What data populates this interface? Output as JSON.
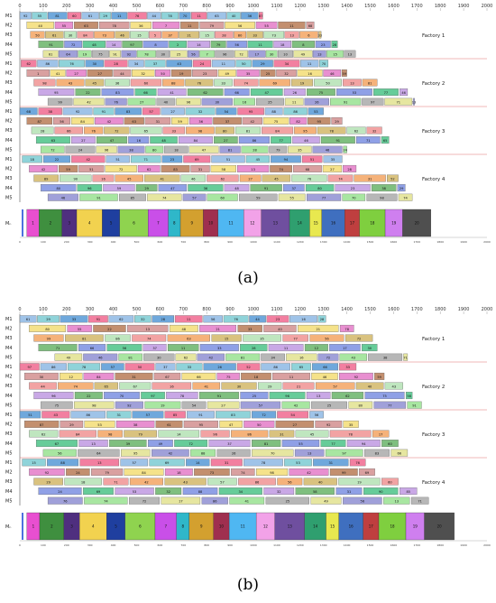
{
  "colors": {
    "palette": [
      "#9fc3e8",
      "#f2a3a3",
      "#a8e6a1",
      "#f5e28a",
      "#c9a8e6",
      "#8fd3d9",
      "#f5b27a",
      "#b7b7b7",
      "#e88fd0",
      "#7fbf7f",
      "#6fa8dc",
      "#d9c27f",
      "#e6e6a0",
      "#c38f6f",
      "#8fa0e6",
      "#f27fa0",
      "#bfe6bf",
      "#a0a0d9",
      "#d9a0a0",
      "#66cc99"
    ],
    "bottom_palette": [
      "#e84fd0",
      "#3f8f3f",
      "#4f2f7f",
      "#f2d24f",
      "#1f3f9f",
      "#8fd34f",
      "#c94fe8",
      "#2fb7c9",
      "#d3a02f",
      "#9f2f4f",
      "#4fb7f2",
      "#f2a2e8",
      "#6f4f9f",
      "#2f9f6f",
      "#e8e84f",
      "#3f6fbf",
      "#bf3f3f",
      "#7fcf3f",
      "#cf7fef",
      "#4f4f4f"
    ],
    "factory_separator": "#e07070",
    "axis": "#555555",
    "last_machine_line": "#1f4fd6"
  },
  "charts": [
    {
      "panel": "a",
      "caption": "(a)",
      "type": "gantt",
      "x_ticks": [
        0,
        100,
        200,
        300,
        400,
        500,
        600,
        700,
        800,
        900,
        1000,
        1100,
        1200,
        1300,
        1400,
        1500,
        1600,
        1700,
        1800,
        1900,
        2000
      ],
      "machines": [
        "M1",
        "M2",
        "M3",
        "M4",
        "M5",
        "M1",
        "M2",
        "M3",
        "M4",
        "M5",
        "M1",
        "M2",
        "M3",
        "M4",
        "M5",
        "M1",
        "M2",
        "M3",
        "M4",
        "M5"
      ],
      "factories": [
        "Factory 1",
        "Factory 2",
        "Factory 3",
        "Factory 4"
      ],
      "bottom_machine": "Mₙ",
      "rows": [
        {
          "start": 0,
          "end": 1040,
          "labels": [
            "92",
            "55",
            "81",
            "60",
            "61",
            "29",
            "11",
            "76",
            "44",
            "78",
            "70",
            "11",
            "63",
            "40",
            "36",
            "87"
          ]
        },
        {
          "start": 30,
          "end": 1260,
          "labels": [
            "40",
            "55",
            "63",
            "78",
            "36",
            "7",
            "11",
            "79",
            "56",
            "55",
            "11",
            "68"
          ]
        },
        {
          "start": 45,
          "end": 1290,
          "labels": [
            "50",
            "61",
            "30",
            "84",
            "73",
            "46",
            "15",
            "5",
            "37",
            "21",
            "15",
            "28",
            "80",
            "33",
            "73",
            "13",
            "6",
            "33"
          ]
        },
        {
          "start": 80,
          "end": 1360,
          "labels": [
            "91",
            "72",
            "48",
            "14",
            "97",
            "8",
            "2",
            "14",
            "79",
            "56",
            "11",
            "18",
            "8",
            "23",
            "28"
          ]
        },
        {
          "start": 100,
          "end": 1440,
          "labels": [
            "61",
            "64",
            "19",
            "75",
            "91",
            "92",
            "78",
            "30",
            "25",
            "56",
            "7",
            "96",
            "72",
            "17",
            "30",
            "10",
            "49",
            "13",
            "15",
            "13",
            "71"
          ]
        },
        {
          "start": 5,
          "end": 1320,
          "labels": [
            "62",
            "86",
            "76",
            "30",
            "28",
            "34",
            "37",
            "43",
            "24",
            "11",
            "50",
            "29",
            "34",
            "11",
            "70"
          ]
        },
        {
          "start": 30,
          "end": 1400,
          "labels": [
            "1",
            "41",
            "27",
            "27",
            "44",
            "32",
            "50",
            "19",
            "23",
            "49",
            "35",
            "25",
            "32",
            "16",
            "46",
            "59"
          ]
        },
        {
          "start": 60,
          "end": 1530,
          "labels": [
            "98",
            "43",
            "45",
            "36",
            "60",
            "88",
            "76",
            "33",
            "74",
            "69",
            "19",
            "50",
            "13",
            "81"
          ]
        },
        {
          "start": 80,
          "end": 1660,
          "labels": [
            "95",
            "22",
            "83",
            "66",
            "41",
            "62",
            "66",
            "47",
            "26",
            "75",
            "53",
            "77",
            "46"
          ]
        },
        {
          "start": 120,
          "end": 1690,
          "labels": [
            "99",
            "42",
            "76",
            "27",
            "40",
            "96",
            "30",
            "16",
            "25",
            "11",
            "26",
            "91",
            "97",
            "71",
            "13"
          ]
        },
        {
          "start": 0,
          "end": 1300,
          "labels": [
            "68",
            "38",
            "92",
            "91",
            "83",
            "57",
            "27",
            "32",
            "54",
            "95",
            "88",
            "86",
            "53"
          ]
        },
        {
          "start": 30,
          "end": 1380,
          "labels": [
            "87",
            "56",
            "84",
            "42",
            "63",
            "31",
            "59",
            "36",
            "37",
            "42",
            "75",
            "82",
            "95",
            "29"
          ]
        },
        {
          "start": 50,
          "end": 1550,
          "labels": [
            "28",
            "66",
            "76",
            "72",
            "65",
            "33",
            "98",
            "80",
            "81",
            "84",
            "95",
            "78",
            "62",
            "32"
          ]
        },
        {
          "start": 70,
          "end": 1580,
          "labels": [
            "63",
            "27",
            "47",
            "16",
            "48",
            "84",
            "27",
            "86",
            "77",
            "46",
            "91",
            "71",
            "65"
          ]
        },
        {
          "start": 90,
          "end": 1400,
          "labels": [
            "72",
            "24",
            "96",
            "38",
            "80",
            "18",
            "47",
            "81",
            "28",
            "79",
            "35",
            "46",
            "24"
          ]
        },
        {
          "start": 10,
          "end": 1380,
          "labels": [
            "18",
            "22",
            "42",
            "51",
            "71",
            "23",
            "69",
            "51",
            "45",
            "94",
            "51",
            "35"
          ]
        },
        {
          "start": 40,
          "end": 1440,
          "labels": [
            "42",
            "59",
            "51",
            "72",
            "62",
            "83",
            "31",
            "58",
            "13",
            "74",
            "68",
            "27",
            "28"
          ]
        },
        {
          "start": 60,
          "end": 1620,
          "labels": [
            "89",
            "90",
            "16",
            "45",
            "41",
            "46",
            "62",
            "27",
            "45",
            "76",
            "74",
            "31",
            "52"
          ]
        },
        {
          "start": 90,
          "end": 1650,
          "labels": [
            "80",
            "96",
            "59",
            "29",
            "47",
            "36",
            "48",
            "91",
            "37",
            "80",
            "23",
            "38",
            "29"
          ]
        },
        {
          "start": 120,
          "end": 1680,
          "labels": [
            "46",
            "91",
            "85",
            "74",
            "57",
            "60",
            "59",
            "55",
            "77",
            "70",
            "98",
            "74"
          ]
        }
      ],
      "bottom_labels": [
        "1",
        "2",
        "3",
        "4",
        "5",
        "6",
        "7",
        "8",
        "9",
        "10",
        "11",
        "12",
        "13",
        "14",
        "15",
        "16",
        "17",
        "18",
        "19",
        "20"
      ],
      "bottom_end": 1760
    },
    {
      "panel": "b",
      "caption": "(b)",
      "type": "gantt",
      "x_ticks": [
        0,
        100,
        200,
        300,
        400,
        500,
        600,
        700,
        800,
        900,
        1000,
        1100,
        1200,
        1300,
        1400,
        1500,
        1600,
        1700,
        1800,
        1900,
        2000
      ],
      "machines": [
        "M1",
        "M2",
        "M3",
        "M4",
        "M5",
        "M1",
        "M2",
        "M3",
        "M4",
        "M5",
        "M1",
        "M2",
        "M3",
        "M4",
        "M5",
        "M1",
        "M2",
        "M3",
        "M4",
        "M5"
      ],
      "factories": [
        "Factory 1",
        "Factory 2",
        "Factory 3",
        "Factory 4"
      ],
      "bottom_machine": "Mₙ",
      "rows": [
        {
          "start": 0,
          "end": 1310,
          "labels": [
            "61",
            "29",
            "33",
            "91",
            "62",
            "32",
            "28",
            "11",
            "56",
            "76",
            "44",
            "23",
            "16",
            "28"
          ]
        },
        {
          "start": 40,
          "end": 1430,
          "labels": [
            "80",
            "55",
            "22",
            "13",
            "48",
            "21",
            "33",
            "40",
            "21",
            "78"
          ]
        },
        {
          "start": 60,
          "end": 1510,
          "labels": [
            "99",
            "81",
            "86",
            "74",
            "63",
            "15",
            "35",
            "77",
            "56",
            "72"
          ]
        },
        {
          "start": 80,
          "end": 1530,
          "labels": [
            "71",
            "66",
            "56",
            "37",
            "11",
            "33",
            "28",
            "11",
            "12",
            "17",
            "30"
          ]
        },
        {
          "start": 150,
          "end": 1660,
          "labels": [
            "49",
            "46",
            "81",
            "30",
            "62",
            "42",
            "81",
            "34",
            "16",
            "72",
            "43",
            "38",
            "71"
          ]
        },
        {
          "start": 0,
          "end": 1440,
          "labels": [
            "97",
            "86",
            "78",
            "57",
            "50",
            "37",
            "33",
            "26",
            "52",
            "86",
            "65",
            "66",
            "33"
          ]
        },
        {
          "start": 20,
          "end": 1560,
          "labels": [
            "30",
            "12",
            "84",
            "31",
            "67",
            "66",
            "75",
            "18",
            "11",
            "46",
            "92",
            "59"
          ]
        },
        {
          "start": 40,
          "end": 1640,
          "labels": [
            "44",
            "74",
            "65",
            "67",
            "16",
            "41",
            "30",
            "29",
            "21",
            "57",
            "40",
            "43"
          ]
        },
        {
          "start": 60,
          "end": 1680,
          "labels": [
            "96",
            "22",
            "70",
            "97",
            "78",
            "91",
            "25",
            "96",
            "13",
            "62",
            "75",
            "58"
          ]
        },
        {
          "start": 90,
          "end": 1720,
          "labels": [
            "75",
            "98",
            "92",
            "19",
            "54",
            "27",
            "57",
            "42",
            "25",
            "80",
            "77",
            "91"
          ]
        },
        {
          "start": 0,
          "end": 1300,
          "labels": [
            "51",
            "43",
            "86",
            "31",
            "57",
            "85",
            "91",
            "83",
            "72",
            "54",
            "56"
          ]
        },
        {
          "start": 20,
          "end": 1450,
          "labels": [
            "87",
            "29",
            "53",
            "38",
            "61",
            "95",
            "47",
            "50",
            "27",
            "92",
            "35"
          ]
        },
        {
          "start": 40,
          "end": 1580,
          "labels": [
            "62",
            "84",
            "98",
            "79",
            "14",
            "96",
            "86",
            "31",
            "45",
            "78",
            "17"
          ]
        },
        {
          "start": 70,
          "end": 1620,
          "labels": [
            "67",
            "13",
            "39",
            "49",
            "72",
            "37",
            "81",
            "55",
            "77",
            "94",
            "60"
          ]
        },
        {
          "start": 100,
          "end": 1660,
          "labels": [
            "56",
            "64",
            "95",
            "42",
            "88",
            "26",
            "70",
            "13",
            "97",
            "83",
            "66"
          ]
        },
        {
          "start": 10,
          "end": 1480,
          "labels": [
            "15",
            "88",
            "13",
            "57",
            "69",
            "14",
            "31",
            "78",
            "53",
            "31",
            "76"
          ]
        },
        {
          "start": 40,
          "end": 1520,
          "labels": [
            "92",
            "24",
            "79",
            "84",
            "18",
            "73",
            "74",
            "98",
            "42",
            "99",
            "69"
          ]
        },
        {
          "start": 60,
          "end": 1620,
          "labels": [
            "29",
            "18",
            "71",
            "42",
            "43",
            "57",
            "86",
            "56",
            "40",
            "19",
            "60"
          ]
        },
        {
          "start": 80,
          "end": 1700,
          "labels": [
            "24",
            "69",
            "53",
            "32",
            "88",
            "34",
            "32",
            "58",
            "31",
            "90",
            "85"
          ]
        },
        {
          "start": 120,
          "end": 1750,
          "labels": [
            "76",
            "74",
            "72",
            "17",
            "86",
            "41",
            "25",
            "49",
            "56",
            "13",
            "71"
          ]
        }
      ],
      "bottom_labels": [
        "1",
        "2",
        "3",
        "4",
        "5",
        "6",
        "7",
        "8",
        "9",
        "10",
        "11",
        "12",
        "13",
        "14",
        "15",
        "16",
        "17",
        "18",
        "19",
        "20"
      ],
      "bottom_end": 1860
    }
  ]
}
